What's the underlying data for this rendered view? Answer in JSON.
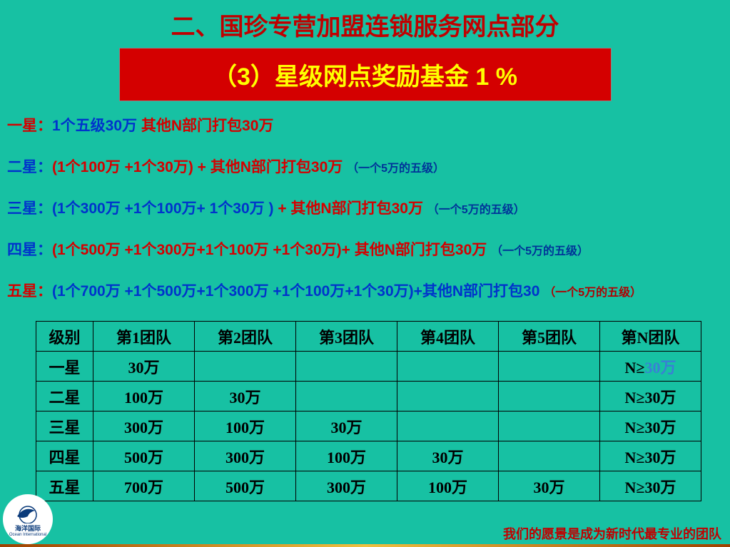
{
  "colors": {
    "background": "#17c1a3",
    "banner_bg": "#d40000",
    "banner_text": "#ffff00",
    "red": "#d40000",
    "blue": "#0033cc",
    "dark_blue_small": "#003399",
    "table_border": "#000000",
    "thirty_blue": "#3a7fd5"
  },
  "header": "二、国珍专营加盟连锁服务网点部分",
  "banner": "（3）星级网点奖励基金 1 %",
  "lines": [
    {
      "label": "一星：",
      "label_class": "lbl-red",
      "parts": [
        {
          "text": "1个五级30万        ",
          "class": "txt-blue"
        },
        {
          "text": "其他N部门打包30万",
          "class": "txt-red"
        }
      ]
    },
    {
      "label": "二星：",
      "label_class": "lbl-blue",
      "parts": [
        {
          "text": "(1个100万 +1个30万)    +  其他N部门打包30万 ",
          "class": "txt-red"
        },
        {
          "text": "（一个5万的五级）",
          "class": "txt-dblue"
        }
      ]
    },
    {
      "label": "三星：",
      "label_class": "lbl-blue",
      "parts": [
        {
          "text": "(1个300万 +1个100万+ 1个30万 )    ",
          "class": "txt-blue"
        },
        {
          "text": "+ 其他N部门打包30万 ",
          "class": "txt-red"
        },
        {
          "text": "（一个5万的五级）",
          "class": "txt-dblue"
        }
      ]
    },
    {
      "label": "四星：",
      "label_class": "lbl-blue",
      "parts": [
        {
          "text": "(1个500万 +1个300万+1个100万 +1个30万)+ 其他N部门打包30万 ",
          "class": "txt-red"
        },
        {
          "text": "（一个5万的五级）",
          "class": "txt-dblue"
        }
      ]
    },
    {
      "label": "五星：",
      "label_class": "lbl-red",
      "parts": [
        {
          "text": "(1个700万 +1个500万+1个300万 +1个100万+1个30万)+其他N部门打包30 ",
          "class": "txt-blue"
        },
        {
          "text": "（一个5万的五级）",
          "class": "txt-dred"
        }
      ]
    }
  ],
  "table": {
    "columns": [
      "级别",
      "第1团队",
      "第2团队",
      "第3团队",
      "第4团队",
      "第5团队",
      "第N团队"
    ],
    "rows": [
      [
        "一星",
        "30万",
        "",
        "",
        "",
        "",
        {
          "pre": "N≥",
          "val": "30万",
          "valclass": "thirty-blue"
        }
      ],
      [
        "二星",
        "100万",
        "30万",
        "",
        "",
        "",
        "N≥30万"
      ],
      [
        "三星",
        "300万",
        "100万",
        "30万",
        "",
        "",
        "N≥30万"
      ],
      [
        "四星",
        "500万",
        "300万",
        "100万",
        "30万",
        "",
        "N≥30万"
      ],
      [
        "五星",
        "700万",
        "500万",
        "300万",
        "100万",
        "30万",
        "N≥30万"
      ]
    ]
  },
  "footer": "我们的愿景是成为新时代最专业的团队",
  "logo": {
    "text": "海洋国际",
    "sub": "Ocean International"
  }
}
